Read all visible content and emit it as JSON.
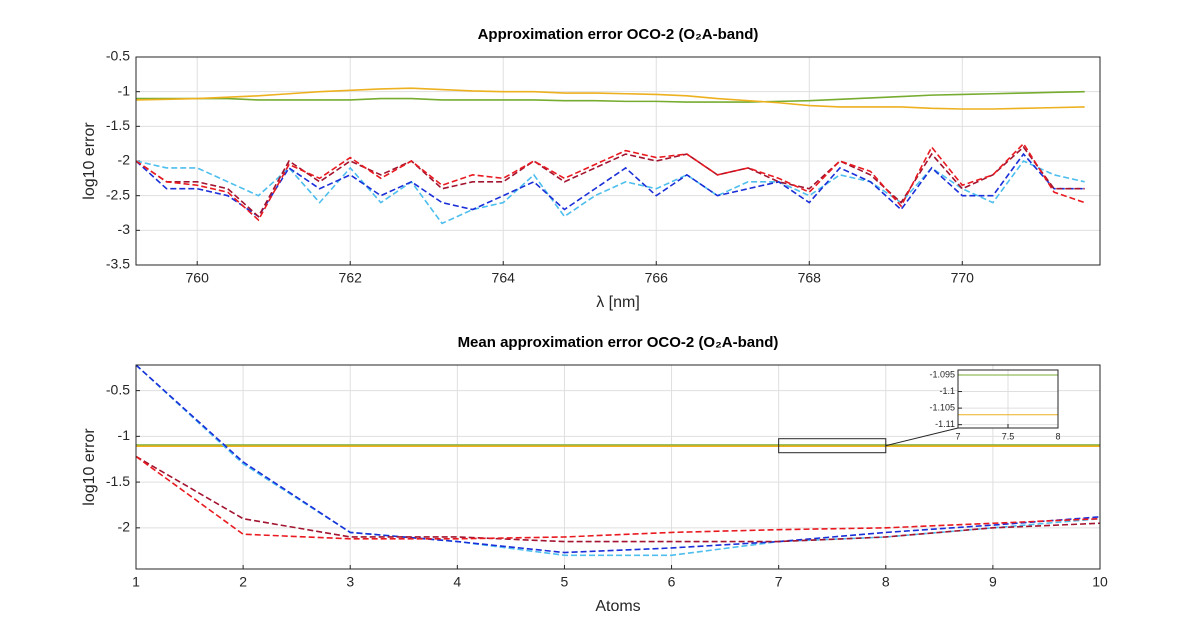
{
  "chart_data": [
    {
      "type": "line",
      "title": "Approximation error OCO-2 (O₂A-band)",
      "xlabel": "λ [nm]",
      "ylabel": "log10 error",
      "xlim": [
        759.2,
        771.8
      ],
      "xticks": [
        760,
        762,
        764,
        766,
        768,
        770
      ],
      "ylim": [
        -3.5,
        -0.5
      ],
      "yticks": [
        -3.5,
        -3,
        -2.5,
        -2,
        -1.5,
        -1,
        -0.5
      ],
      "grid": true,
      "x": [
        759.2,
        759.6,
        760.0,
        760.4,
        760.8,
        761.2,
        761.6,
        762.0,
        762.4,
        762.8,
        763.2,
        763.6,
        764.0,
        764.4,
        764.8,
        765.2,
        765.6,
        766.0,
        766.4,
        766.8,
        767.2,
        767.6,
        768.0,
        768.4,
        768.8,
        769.2,
        769.6,
        770.0,
        770.4,
        770.8,
        771.2,
        771.6
      ],
      "series": [
        {
          "color": "#77ac30",
          "linestyle": "solid",
          "values": [
            -1.1,
            -1.1,
            -1.1,
            -1.1,
            -1.12,
            -1.12,
            -1.12,
            -1.12,
            -1.1,
            -1.1,
            -1.12,
            -1.12,
            -1.12,
            -1.12,
            -1.13,
            -1.13,
            -1.14,
            -1.14,
            -1.15,
            -1.15,
            -1.15,
            -1.14,
            -1.13,
            -1.11,
            -1.09,
            -1.07,
            -1.05,
            -1.04,
            -1.03,
            -1.02,
            -1.01,
            -1.0
          ]
        },
        {
          "color": "#edb120",
          "linestyle": "solid",
          "values": [
            -1.12,
            -1.11,
            -1.1,
            -1.08,
            -1.06,
            -1.03,
            -1.0,
            -0.98,
            -0.96,
            -0.95,
            -0.97,
            -0.99,
            -1.0,
            -1.0,
            -1.02,
            -1.02,
            -1.03,
            -1.04,
            -1.06,
            -1.1,
            -1.13,
            -1.16,
            -1.2,
            -1.22,
            -1.22,
            -1.22,
            -1.24,
            -1.25,
            -1.25,
            -1.24,
            -1.23,
            -1.22
          ]
        },
        {
          "color": "#4dbeee",
          "linestyle": "dashed",
          "values": [
            -2.0,
            -2.1,
            -2.1,
            -2.3,
            -2.5,
            -2.1,
            -2.6,
            -2.1,
            -2.6,
            -2.3,
            -2.9,
            -2.7,
            -2.6,
            -2.2,
            -2.8,
            -2.5,
            -2.3,
            -2.4,
            -2.2,
            -2.5,
            -2.3,
            -2.3,
            -2.5,
            -2.2,
            -2.3,
            -2.6,
            -2.1,
            -2.4,
            -2.6,
            -2.0,
            -2.2,
            -2.3
          ]
        },
        {
          "color": "#1a2fd8",
          "linestyle": "dashed",
          "values": [
            -2.0,
            -2.4,
            -2.4,
            -2.5,
            -2.8,
            -2.1,
            -2.4,
            -2.2,
            -2.5,
            -2.3,
            -2.6,
            -2.7,
            -2.5,
            -2.3,
            -2.7,
            -2.4,
            -2.1,
            -2.5,
            -2.2,
            -2.5,
            -2.4,
            -2.3,
            -2.6,
            -2.1,
            -2.3,
            -2.7,
            -2.1,
            -2.5,
            -2.5,
            -1.9,
            -2.4,
            -2.4
          ]
        },
        {
          "color": "#a2142f",
          "linestyle": "dashed",
          "values": [
            -2.0,
            -2.3,
            -2.3,
            -2.4,
            -2.8,
            -2.0,
            -2.3,
            -2.0,
            -2.2,
            -2.0,
            -2.4,
            -2.3,
            -2.3,
            -2.0,
            -2.3,
            -2.1,
            -1.9,
            -2.0,
            -1.9,
            -2.2,
            -2.1,
            -2.3,
            -2.4,
            -2.0,
            -2.2,
            -2.6,
            -1.9,
            -2.4,
            -2.2,
            -1.8,
            -2.4,
            -2.4
          ]
        },
        {
          "color": "#e8191f",
          "linestyle": "dashed",
          "values": [
            -2.0,
            -2.3,
            -2.35,
            -2.45,
            -2.85,
            -2.05,
            -2.25,
            -1.95,
            -2.25,
            -2.0,
            -2.35,
            -2.2,
            -2.25,
            -2.0,
            -2.25,
            -2.05,
            -1.85,
            -1.95,
            -1.9,
            -2.2,
            -2.1,
            -2.25,
            -2.45,
            -2.0,
            -2.15,
            -2.65,
            -1.8,
            -2.35,
            -2.2,
            -1.75,
            -2.45,
            -2.6
          ]
        }
      ]
    },
    {
      "type": "line",
      "title": "Mean approximation error OCO-2 (O₂A-band)",
      "xlabel": "Atoms",
      "ylabel": "log10 error",
      "xlim": [
        1,
        10
      ],
      "xticks": [
        1,
        2,
        3,
        4,
        5,
        6,
        7,
        8,
        9,
        10
      ],
      "ylim": [
        -2.45,
        -0.22
      ],
      "yticks": [
        -2,
        -1.5,
        -1,
        -0.5
      ],
      "grid": true,
      "x": [
        1,
        2,
        3,
        4,
        5,
        6,
        7,
        8,
        9,
        10
      ],
      "series": [
        {
          "color": "#77ac30",
          "linestyle": "solid",
          "values": [
            -1.095,
            -1.095,
            -1.095,
            -1.095,
            -1.095,
            -1.095,
            -1.095,
            -1.095,
            -1.095,
            -1.095
          ]
        },
        {
          "color": "#edb120",
          "linestyle": "solid",
          "values": [
            -1.107,
            -1.107,
            -1.107,
            -1.107,
            -1.107,
            -1.107,
            -1.107,
            -1.107,
            -1.107,
            -1.107
          ]
        },
        {
          "color": "#4dbeee",
          "linestyle": "dashed",
          "values": [
            -0.22,
            -1.3,
            -2.05,
            -2.15,
            -2.3,
            -2.3,
            -2.15,
            -2.1,
            -2.0,
            -1.9
          ]
        },
        {
          "color": "#1a2fd8",
          "linestyle": "dashed",
          "values": [
            -0.22,
            -1.28,
            -2.05,
            -2.15,
            -2.27,
            -2.22,
            -2.15,
            -2.05,
            -1.97,
            -1.88
          ]
        },
        {
          "color": "#a2142f",
          "linestyle": "dashed",
          "values": [
            -1.22,
            -1.9,
            -2.1,
            -2.1,
            -2.15,
            -2.15,
            -2.15,
            -2.1,
            -2.0,
            -1.95
          ]
        },
        {
          "color": "#e8191f",
          "linestyle": "dashed",
          "values": [
            -1.22,
            -2.07,
            -2.12,
            -2.12,
            -2.1,
            -2.05,
            -2.02,
            -2.0,
            -1.95,
            -1.9
          ]
        }
      ]
    },
    {
      "type": "line",
      "xlim": [
        7,
        8
      ],
      "xticks": [
        7,
        7.5,
        8
      ],
      "ylim": [
        -1.111,
        -1.0935
      ],
      "yticks": [
        -1.11,
        -1.105,
        -1.1,
        -1.095
      ],
      "grid": true,
      "x": [
        7,
        8
      ],
      "series": [
        {
          "color": "#77ac30",
          "linestyle": "solid",
          "values": [
            -1.095,
            -1.095
          ]
        },
        {
          "color": "#edb120",
          "linestyle": "solid",
          "values": [
            -1.107,
            -1.107
          ]
        }
      ]
    }
  ]
}
